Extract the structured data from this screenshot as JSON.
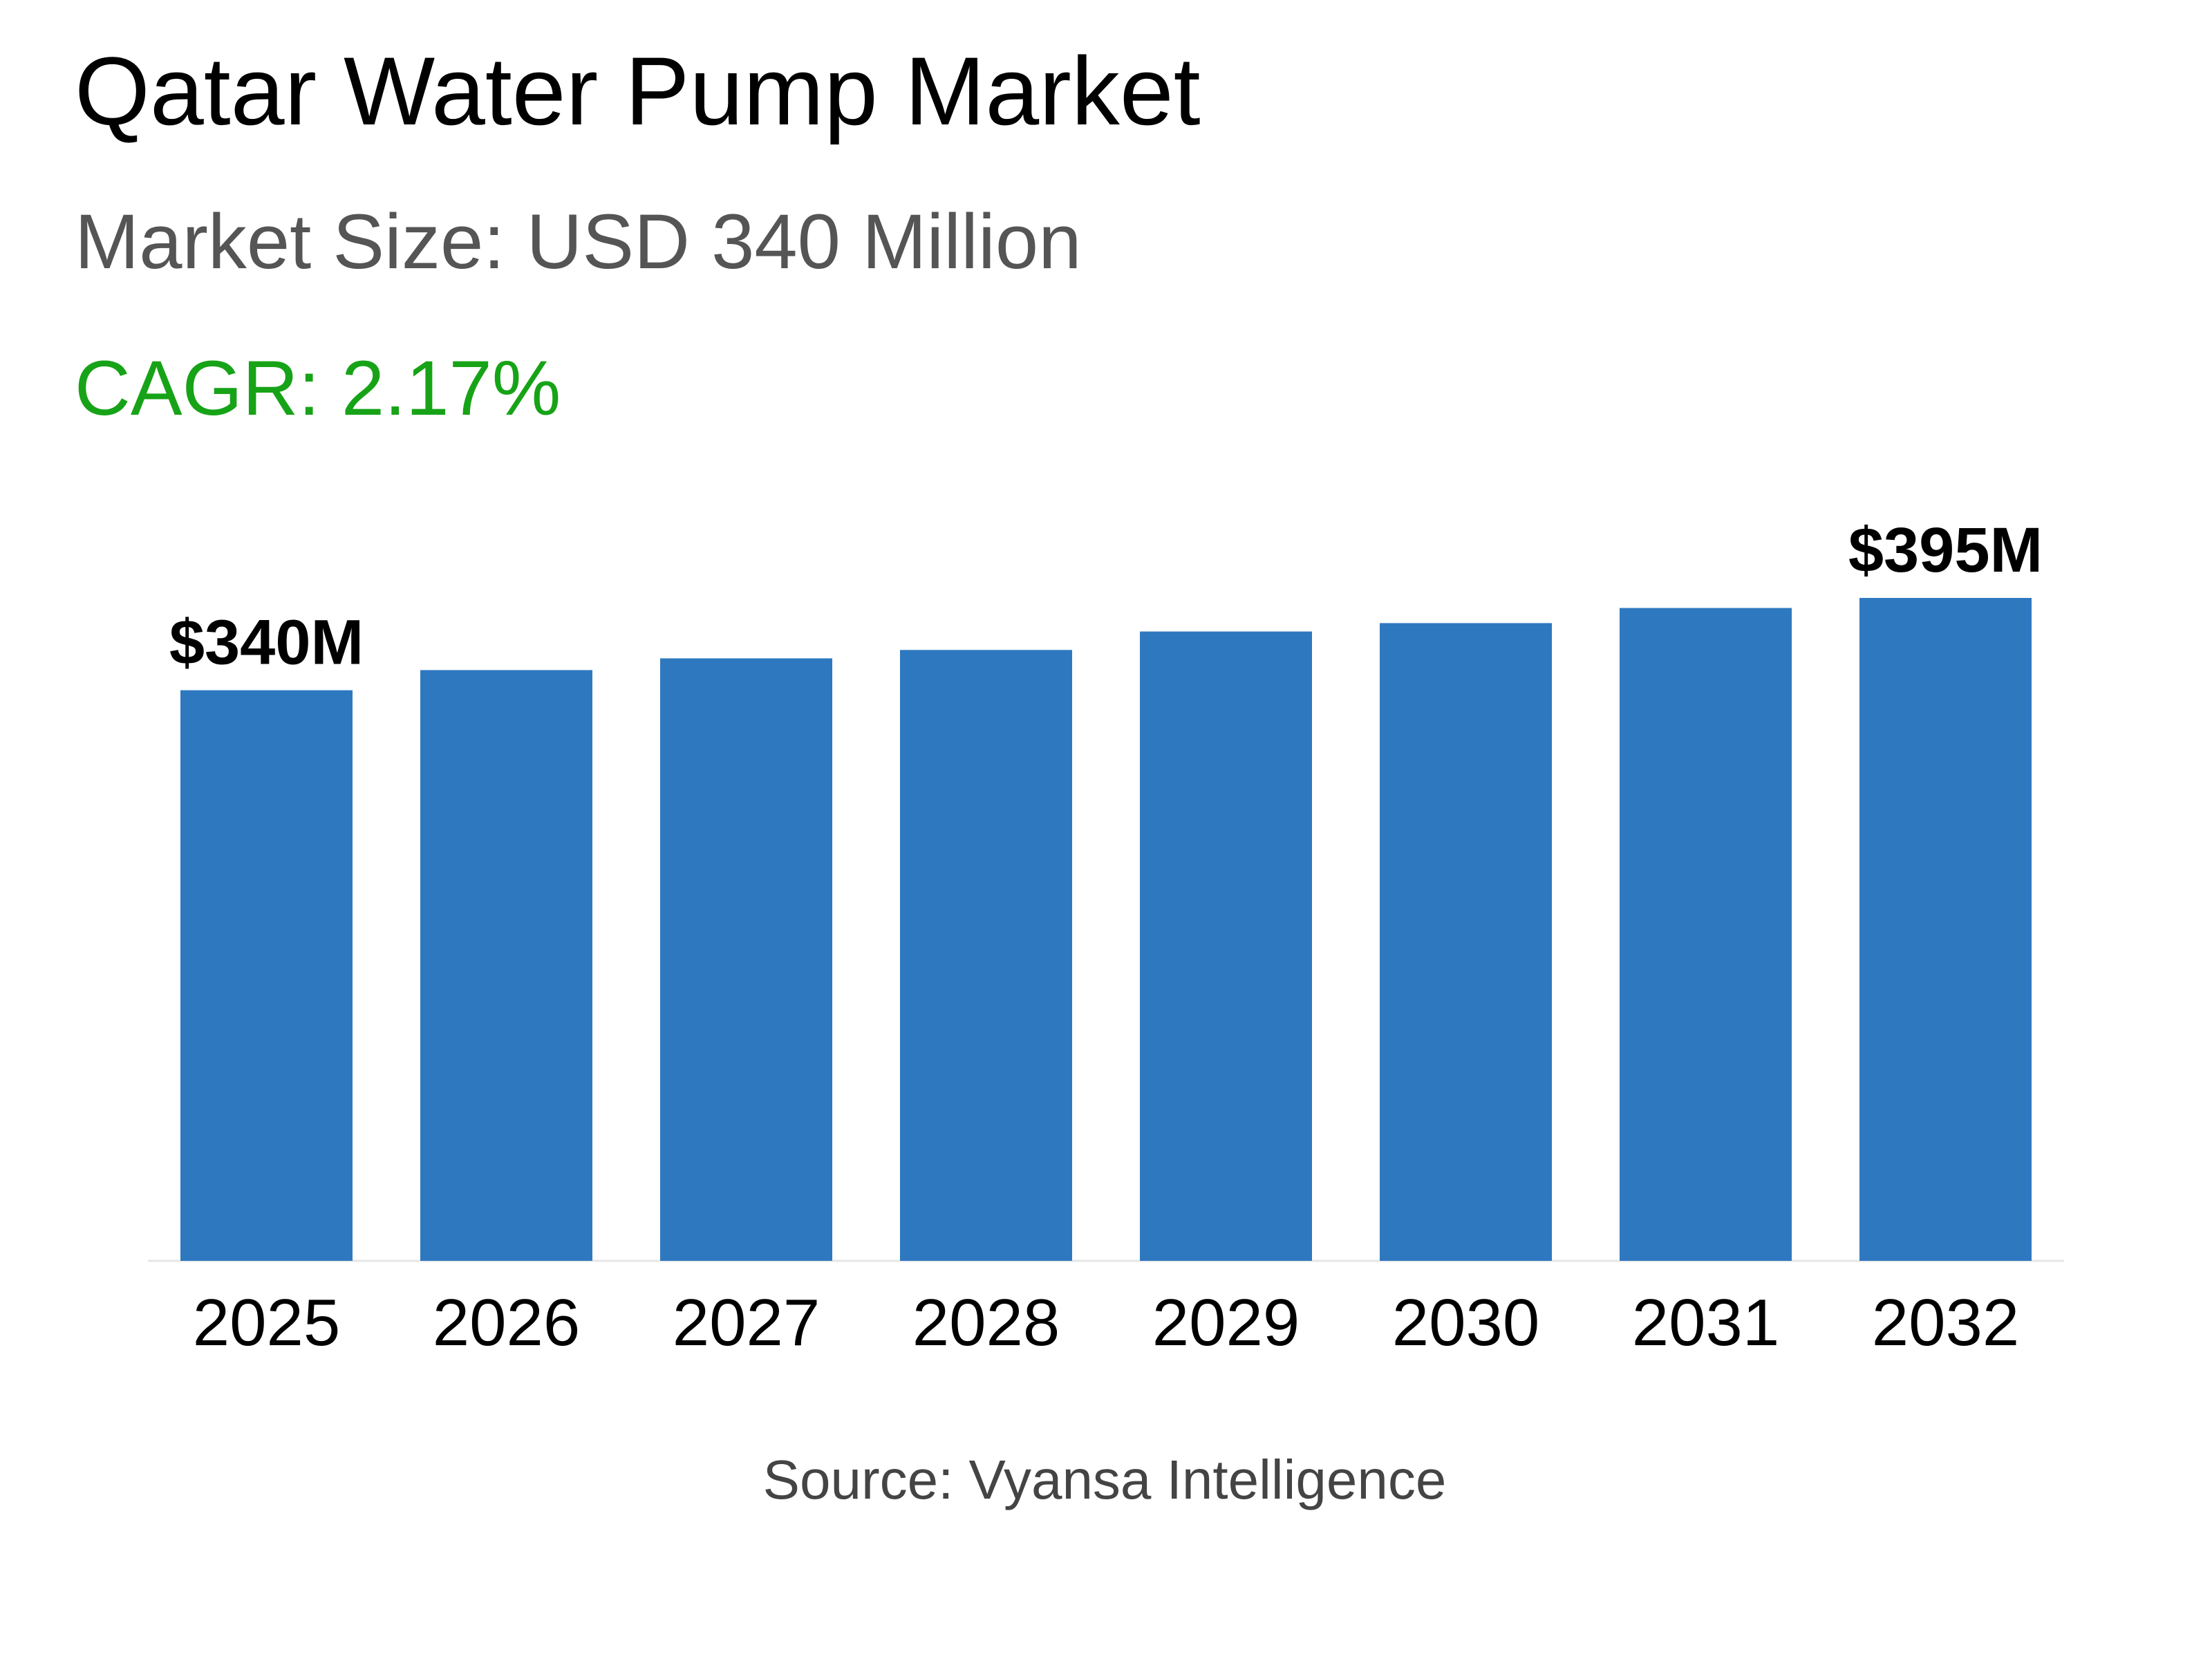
{
  "chart_data": {
    "type": "bar",
    "title": "Qatar Water Pump Market",
    "subtitle": "Market Size: USD 340 Million",
    "cagr": "CAGR: 2.17%",
    "source": "Source: Vyansa Intelligence",
    "categories": [
      "2025",
      "2026",
      "2027",
      "2028",
      "2029",
      "2030",
      "2031",
      "2032"
    ],
    "values": [
      340,
      352,
      359,
      364,
      375,
      380,
      389,
      395
    ],
    "value_labels": [
      "$340M",
      null,
      null,
      null,
      null,
      null,
      null,
      "$395M"
    ],
    "color": "#2e78c0"
  }
}
